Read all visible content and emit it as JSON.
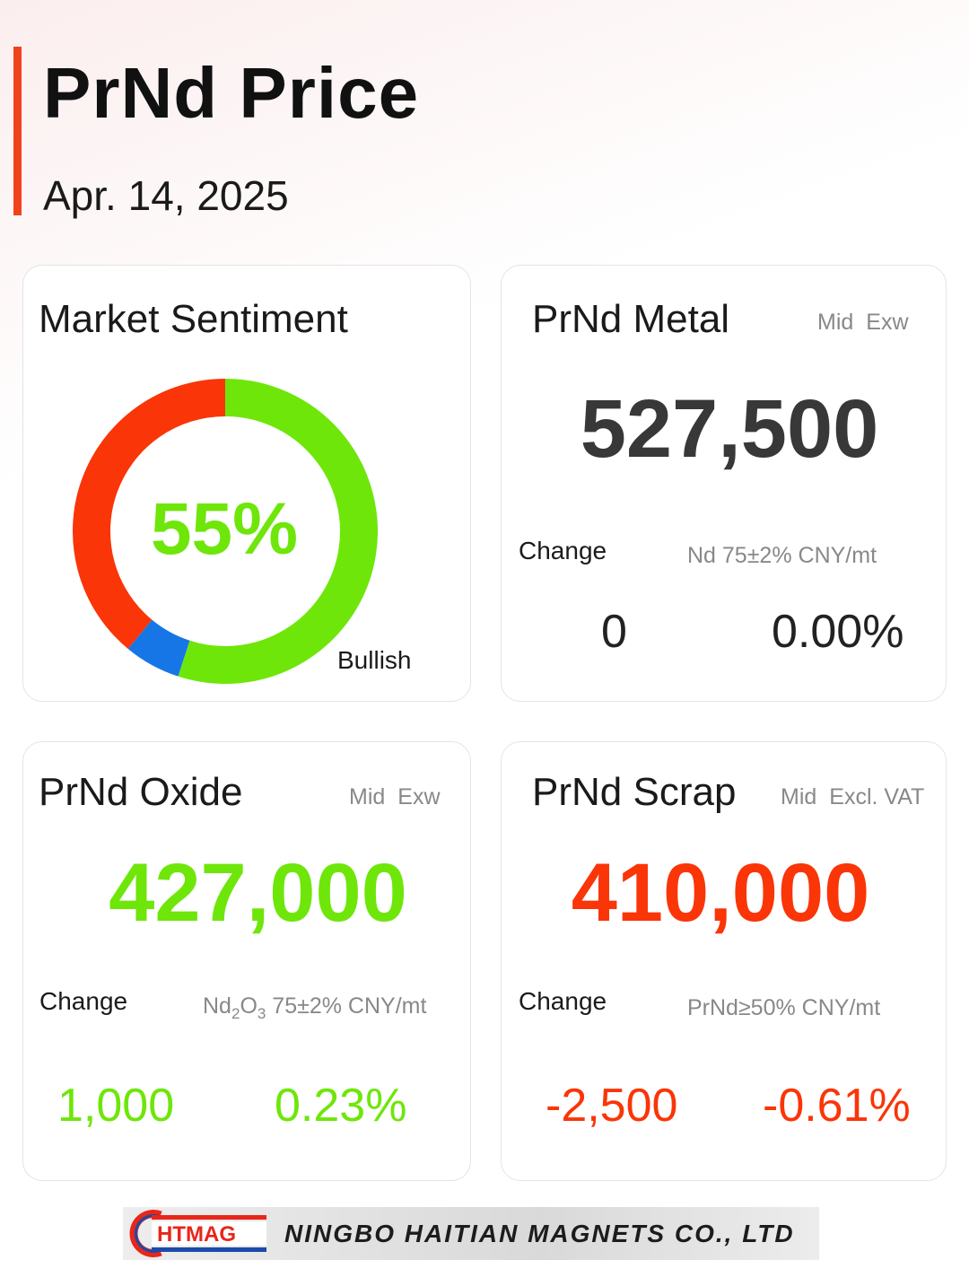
{
  "header": {
    "title": "PrNd Price",
    "date": "Apr. 14, 2025"
  },
  "sentiment": {
    "title": "Market Sentiment",
    "percent_label": "55%",
    "label": "Bullish",
    "segments": [
      {
        "name": "bullish",
        "value": 55,
        "color": "#6ee60a"
      },
      {
        "name": "neutral",
        "value": 6,
        "color": "#1676e6"
      },
      {
        "name": "bearish",
        "value": 39,
        "color": "#fa3508"
      }
    ]
  },
  "metal": {
    "title": "PrNd Metal",
    "meta1": "Mid",
    "meta2": "Exw",
    "price": "527,500",
    "change_label": "Change",
    "spec": "Nd 75±2% CNY/mt",
    "change": "0",
    "change_pct": "0.00%",
    "color": "#383838"
  },
  "oxide": {
    "title": "PrNd Oxide",
    "meta1": "Mid",
    "meta2": "Exw",
    "price": "427,000",
    "change_label": "Change",
    "spec_base": "Nd",
    "spec_sub1": "2",
    "spec_mid": "O",
    "spec_sub2": "3",
    "spec_rest": " 75±2% CNY/mt",
    "change": "1,000",
    "change_pct": "0.23%",
    "color": "#6ee60a"
  },
  "scrap": {
    "title": "PrNd Scrap",
    "meta1": "Mid",
    "meta2": "Excl. VAT",
    "price": "410,000",
    "change_label": "Change",
    "spec": "PrNd≥50% CNY/mt",
    "change": "-2,500",
    "change_pct": "-0.61%",
    "color": "#fa3508"
  },
  "footer": {
    "logo_text": "HTMAG",
    "company": "NINGBO HAITIAN MAGNETS CO., LTD"
  }
}
